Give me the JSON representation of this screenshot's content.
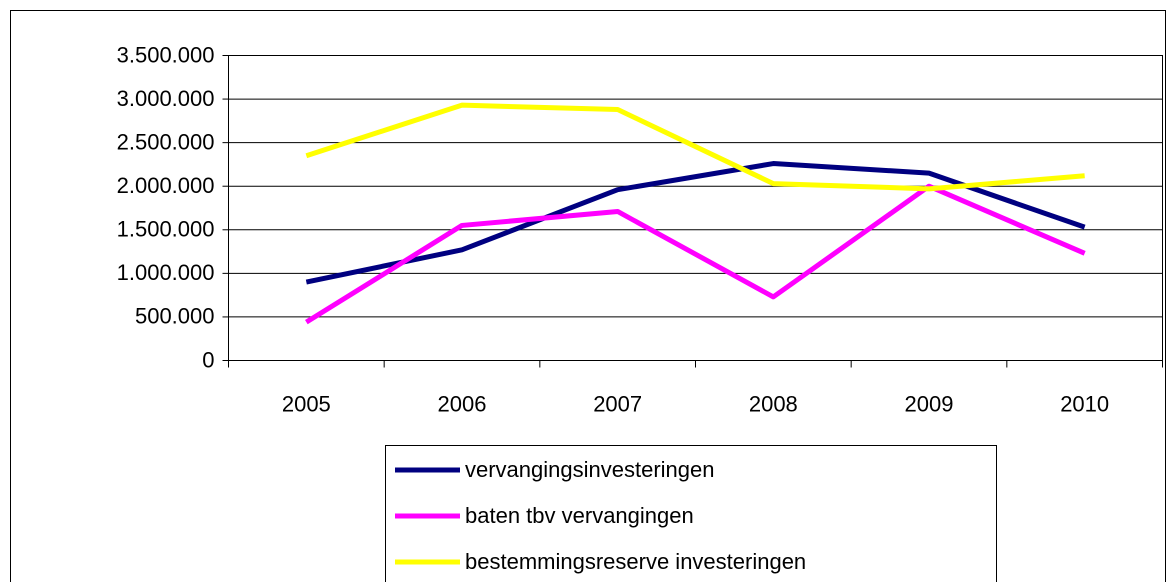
{
  "chart_data": {
    "type": "line",
    "categories": [
      "2005",
      "2006",
      "2007",
      "2008",
      "2009",
      "2010"
    ],
    "series": [
      {
        "name": "vervangingsinvesteringen",
        "color": "#000080",
        "values": [
          900000,
          1270000,
          1960000,
          2260000,
          2150000,
          1530000
        ]
      },
      {
        "name": "baten tbv vervangingen",
        "color": "#ff00ff",
        "values": [
          440000,
          1550000,
          1710000,
          730000,
          2000000,
          1230000
        ]
      },
      {
        "name": "bestemmingsreserve investeringen",
        "color": "#ffff00",
        "values": [
          2350000,
          2930000,
          2880000,
          2030000,
          1970000,
          2120000
        ]
      }
    ],
    "ylim": [
      0,
      3500000
    ],
    "yticks": [
      0,
      {
        "value": 500000,
        "label": "500.000"
      },
      {
        "value": 1000000,
        "label": "1.000.000"
      },
      {
        "value": 1500000,
        "label": "1.500.000"
      },
      {
        "value": 2000000,
        "label": "2.000.000"
      },
      {
        "value": 2500000,
        "label": "2.500.000"
      },
      {
        "value": 3000000,
        "label": "3.000.000"
      },
      {
        "value": 3500000,
        "label": "3.500.000"
      }
    ],
    "grid": true
  }
}
